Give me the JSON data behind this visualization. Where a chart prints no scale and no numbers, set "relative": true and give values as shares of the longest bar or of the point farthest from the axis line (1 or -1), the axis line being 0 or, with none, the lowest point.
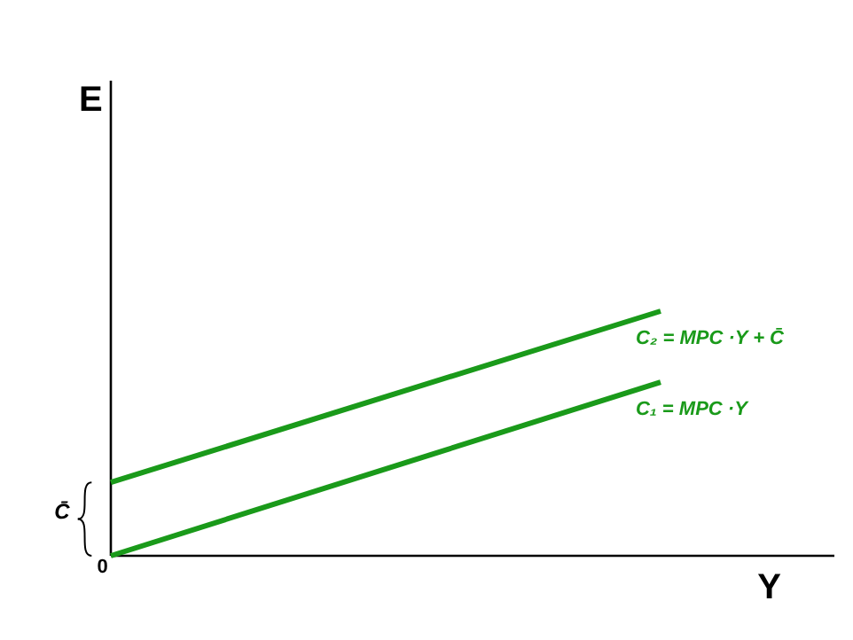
{
  "chart_data": {
    "type": "line",
    "relative": true,
    "xlabel": "Y",
    "categories": [
      null,
      null
    ],
    "series": [
      {
        "name": "C₂ = MPC ·Y + C̄",
        "color": "#1a9a1a",
        "values": [
          0.3,
          1
        ]
      },
      {
        "name": "C₁ = MPC ·Y",
        "color": "#1a9a1a",
        "values": [
          0,
          0.71
        ]
      }
    ],
    "annotations": [
      "0",
      "C̄",
      "E"
    ]
  }
}
